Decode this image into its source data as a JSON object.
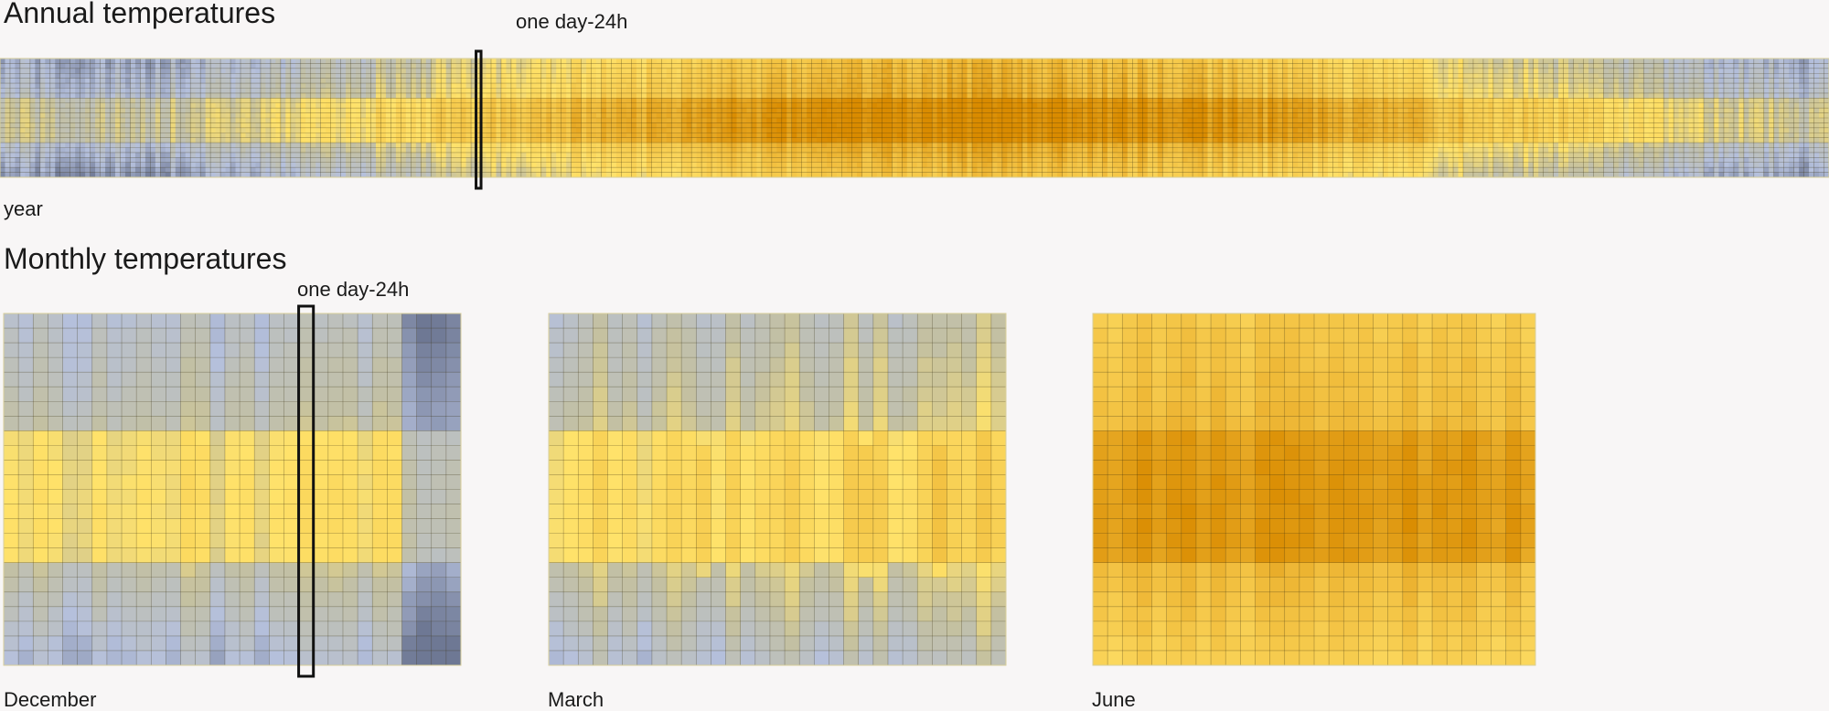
{
  "chart_data": [
    {
      "type": "heatmap",
      "title": "Annual temperatures",
      "xlabel": "year",
      "annotation": "one day-24h",
      "rows": 24,
      "columns": 365,
      "highlight_column": 95,
      "colors": {
        "cold_dark": "#6e7894",
        "cold": "#b5c0dc",
        "neutral": "#c3c0a2",
        "mild": "#ffe26a",
        "warm": "#f2c040",
        "hot": "#d98b00"
      },
      "legend": "none",
      "grid": true
    },
    {
      "type": "heatmap",
      "title": "Monthly temperatures",
      "xlabel": "December",
      "annotation": "one day-24h",
      "rows": 24,
      "columns": 31,
      "highlight_column": 20,
      "grid": true
    },
    {
      "type": "heatmap",
      "xlabel": "March",
      "rows": 24,
      "columns": 31,
      "grid": true
    },
    {
      "type": "heatmap",
      "xlabel": "June",
      "rows": 24,
      "columns": 30,
      "grid": true
    }
  ]
}
